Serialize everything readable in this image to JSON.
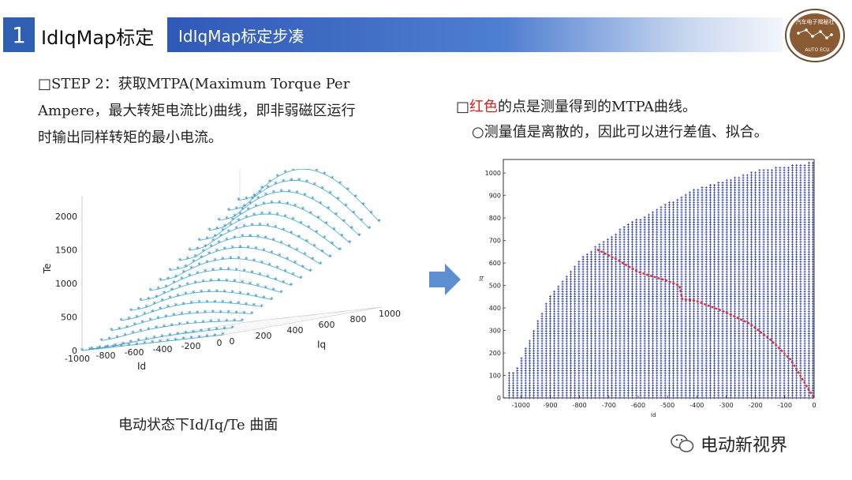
{
  "header": {
    "section_number": "1",
    "section_title": "IdIqMap标定",
    "banner_title": "IdIqMap标定步凑"
  },
  "logo": {
    "text_top": "汽车电子揭秘社",
    "text_bottom": "AUTO ECU"
  },
  "left_text": {
    "line1": "□STEP 2：获取MTPA(Maximum Torque Per",
    "line2": "Ampere，最大转矩电流比)曲线，即非弱磁区运行",
    "line3": "时输出同样转矩的最小电流。"
  },
  "right_text": {
    "line1_prefix": "□",
    "line1_red": "红色",
    "line1_rest": "的点是测量得到的MTPA曲线。",
    "line2": "○测量值是离散的，因此可以进行差值、拟合。"
  },
  "caption": "电动状态下Id/Iq/Te 曲面",
  "brand": "电动新视界",
  "chart_data": [
    {
      "type": "scatter",
      "title": "",
      "xlabel": "Id",
      "ylabel": "Iq",
      "zlabel": "Te",
      "x_ticks": [
        "-1000",
        "-800",
        "-600",
        "-400",
        "-200",
        "0"
      ],
      "y_ticks": [
        "0",
        "200",
        "400",
        "600",
        "800",
        "1000"
      ],
      "z_ticks": [
        "0",
        "500",
        "1000",
        "1500",
        "2000"
      ],
      "xlim": [
        -1000,
        0
      ],
      "ylim": [
        0,
        1000
      ],
      "zlim": [
        0,
        2300
      ],
      "marker_color": "#3fa9d6",
      "surface": "Te rises with Iq; peak ~2300 near Id=-400, Iq=1000"
    },
    {
      "type": "scatter",
      "title": "",
      "xlabel": "Id",
      "ylabel": "Iq",
      "x_ticks": [
        "-1000",
        "-900",
        "-800",
        "-700",
        "-600",
        "-500",
        "-400",
        "-300",
        "-200",
        "-100",
        "0"
      ],
      "y_ticks": [
        "0",
        "100",
        "200",
        "300",
        "400",
        "500",
        "600",
        "700",
        "800",
        "900",
        "1000"
      ],
      "xlim": [
        -1060,
        0
      ],
      "ylim": [
        0,
        1060
      ],
      "grid_color": "#1a2a9c",
      "mtpa_color": "#e03030",
      "mtpa_curve": [
        [
          -740,
          660
        ],
        [
          -680,
          620
        ],
        [
          -600,
          560
        ],
        [
          -500,
          520
        ],
        [
          -460,
          500
        ],
        [
          -450,
          440
        ],
        [
          -400,
          430
        ],
        [
          -300,
          380
        ],
        [
          -220,
          330
        ],
        [
          -150,
          260
        ],
        [
          -80,
          170
        ],
        [
          -20,
          40
        ],
        [
          0,
          0
        ]
      ]
    }
  ]
}
